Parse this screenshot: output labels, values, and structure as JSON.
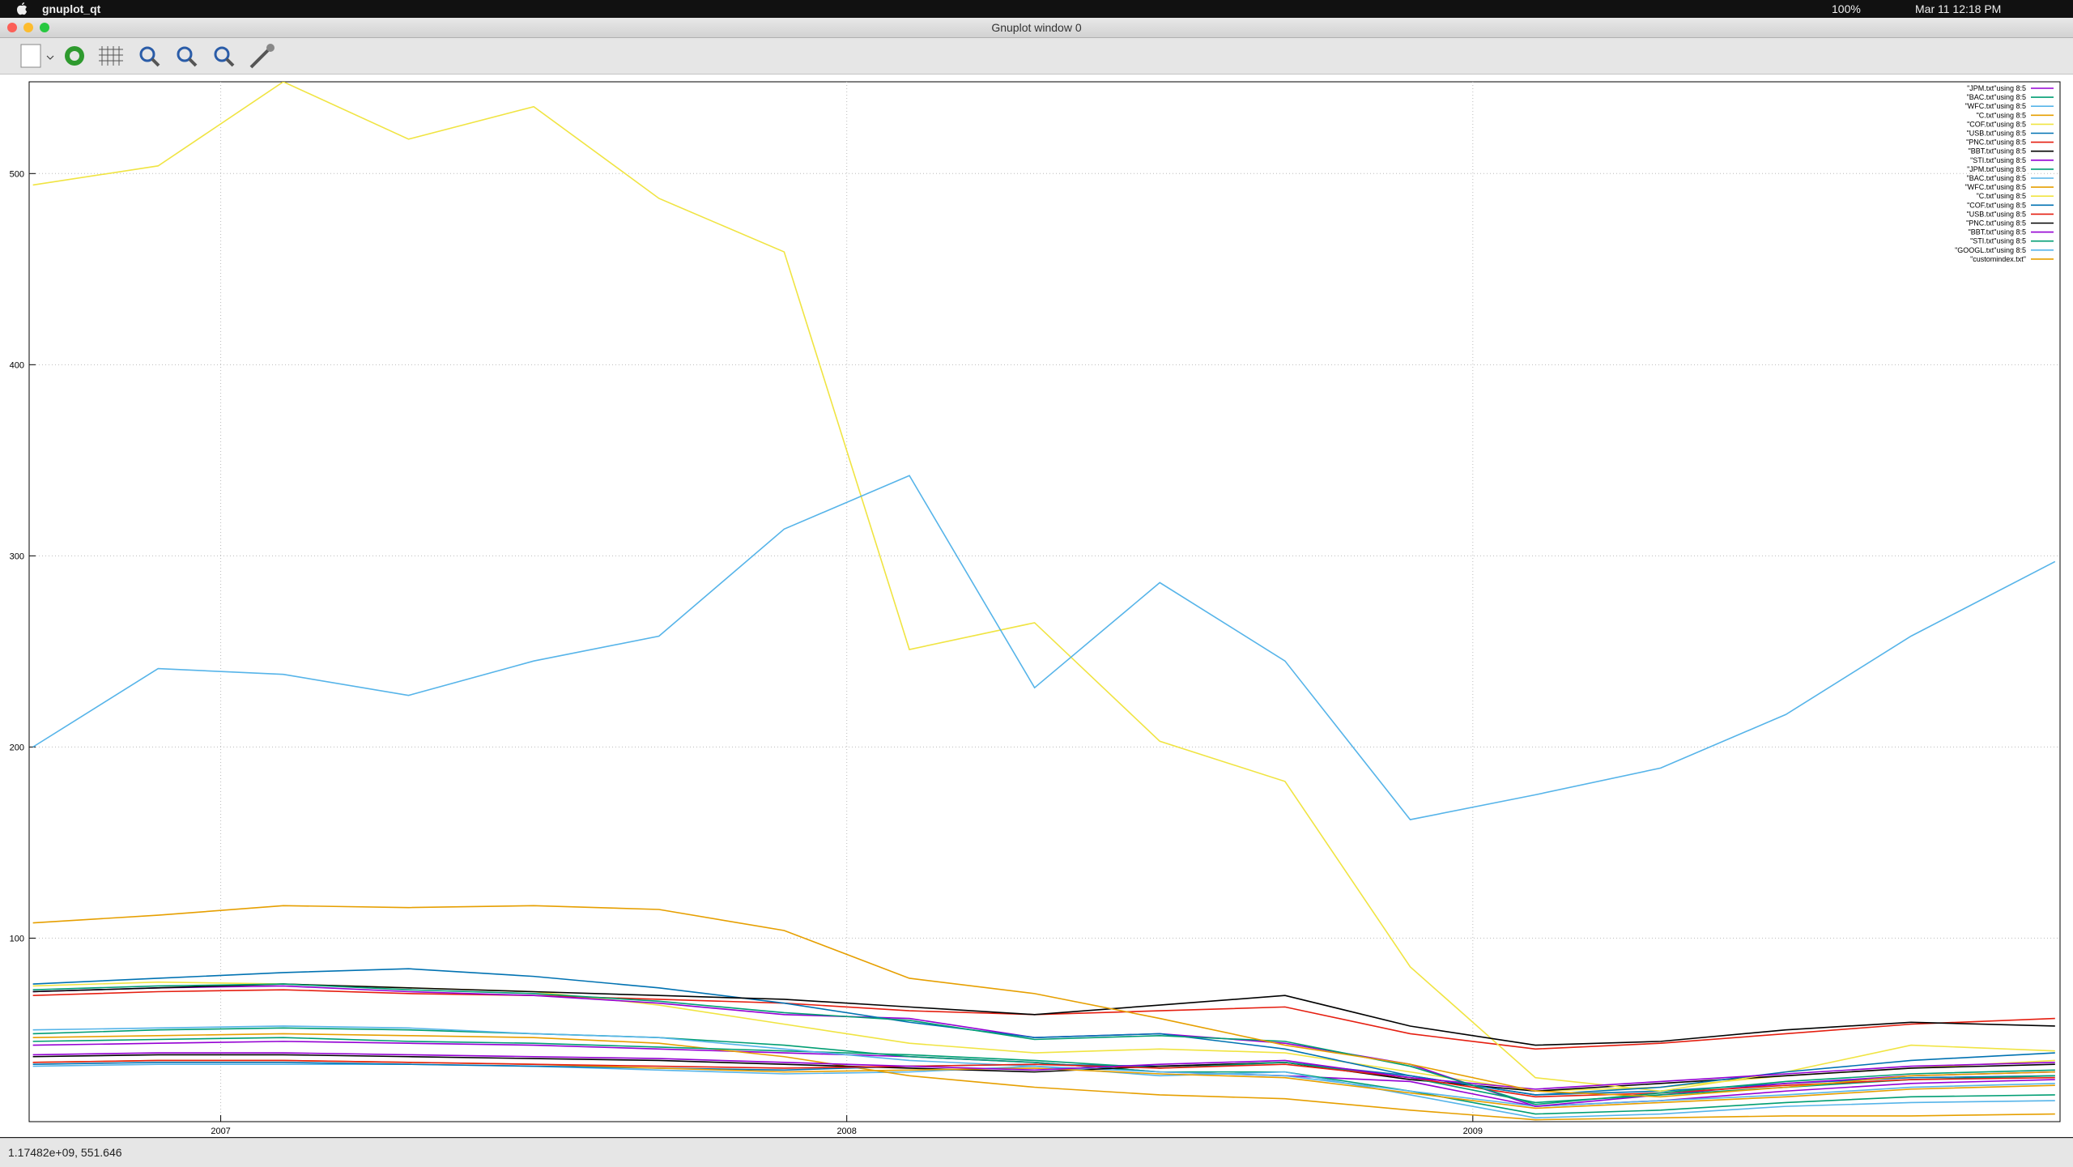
{
  "menu_bar": {
    "app_name": "gnuplot_qt",
    "battery": "100%",
    "clock": "Mar 11  12:18 PM"
  },
  "window": {
    "title": "Gnuplot window 0",
    "status": "1.17482e+09,  551.646"
  },
  "chart_data": {
    "type": "line",
    "x": [
      2006.7,
      2006.9,
      2007.1,
      2007.3,
      2007.5,
      2007.7,
      2007.9,
      2008.1,
      2008.3,
      2008.5,
      2008.7,
      2008.9,
      2009.1,
      2009.3,
      2009.5,
      2009.7,
      2009.93
    ],
    "xlim": [
      2006.694,
      2009.938
    ],
    "xticks": [
      2007,
      2008,
      2009
    ],
    "ylim": [
      4,
      548
    ],
    "yticks": [
      100,
      200,
      300,
      400,
      500
    ],
    "grid": true,
    "legend": "top-right",
    "series": [
      {
        "name": "\"JPM.txt\"using 8:5",
        "color": "#9400d3",
        "values": [
          44,
          45,
          46,
          45,
          44,
          42,
          40,
          38,
          35,
          30,
          28,
          25,
          12,
          15,
          20,
          24,
          26
        ]
      },
      {
        "name": "\"BAC.txt\"using 8:5",
        "color": "#009e73",
        "values": [
          50,
          52,
          53,
          52,
          50,
          48,
          44,
          38,
          35,
          30,
          30,
          20,
          8,
          10,
          14,
          17,
          18
        ]
      },
      {
        "name": "\"WFC.txt\"using 8:5",
        "color": "#56b4e9",
        "values": [
          33,
          34,
          34,
          34,
          33,
          31,
          29,
          30,
          33,
          30,
          28,
          20,
          12,
          15,
          18,
          22,
          24
        ]
      },
      {
        "name": "\"C.txt\"using 8:5",
        "color": "#e69f00",
        "values": [
          48,
          49,
          50,
          49,
          48,
          45,
          38,
          28,
          22,
          18,
          16,
          10,
          5,
          6,
          7,
          7,
          8
        ]
      },
      {
        "name": "\"COF.txt\"using 8:5",
        "color": "#f0e442",
        "values": [
          75,
          77,
          76,
          74,
          72,
          65,
          55,
          45,
          40,
          42,
          40,
          30,
          20,
          22,
          28,
          32,
          36
        ]
      },
      {
        "name": "\"USB.txt\"using 8:5",
        "color": "#0072b2",
        "values": [
          34,
          35,
          35,
          34,
          33,
          32,
          31,
          33,
          34,
          33,
          35,
          28,
          18,
          20,
          24,
          27,
          28
        ]
      },
      {
        "name": "\"PNC.txt\"using 8:5",
        "color": "#e51e10",
        "values": [
          70,
          72,
          73,
          71,
          70,
          68,
          66,
          62,
          60,
          62,
          64,
          50,
          42,
          45,
          50,
          55,
          58
        ]
      },
      {
        "name": "\"BBT.txt\"using 8:5",
        "color": "#000000",
        "values": [
          38,
          39,
          39,
          38,
          37,
          36,
          34,
          32,
          30,
          33,
          35,
          26,
          20,
          24,
          28,
          32,
          34
        ]
      },
      {
        "name": "\"STI.txt\"using 8:5",
        "color": "#9400d3",
        "values": [
          72,
          74,
          75,
          72,
          70,
          66,
          60,
          58,
          48,
          50,
          45,
          34,
          12,
          18,
          24,
          28,
          30
        ]
      },
      {
        "name": "\"JPM.txt\"using 8:5",
        "color": "#009e73",
        "values": [
          46,
          47,
          48,
          46,
          45,
          43,
          41,
          39,
          36,
          32,
          35,
          27,
          14,
          18,
          22,
          26,
          28
        ]
      },
      {
        "name": "\"BAC.txt\"using 8:5",
        "color": "#56b4e9",
        "values": [
          52,
          53,
          54,
          53,
          50,
          48,
          42,
          36,
          33,
          28,
          30,
          18,
          6,
          8,
          12,
          14,
          15
        ]
      },
      {
        "name": "\"WFC.txt\"using 8:5",
        "color": "#e69f00",
        "values": [
          35,
          36,
          36,
          35,
          34,
          32,
          30,
          31,
          32,
          29,
          27,
          19,
          11,
          14,
          17,
          21,
          23
        ]
      },
      {
        "name": "\"C.txt\"using 8:5",
        "color": "#f0e442",
        "values": [
          494,
          504,
          548,
          518,
          535,
          487,
          459,
          251,
          265,
          203,
          182,
          85,
          27,
          20,
          30,
          44,
          41
        ]
      },
      {
        "name": "\"COF.txt\"using 8:5",
        "color": "#0072b2",
        "values": [
          76,
          79,
          82,
          84,
          80,
          74,
          66,
          56,
          48,
          50,
          42,
          28,
          18,
          22,
          30,
          36,
          40
        ]
      },
      {
        "name": "\"USB.txt\"using 8:5",
        "color": "#e51e10",
        "values": [
          35,
          36,
          36,
          35,
          34,
          33,
          32,
          33,
          34,
          32,
          34,
          27,
          17,
          19,
          23,
          26,
          27
        ]
      },
      {
        "name": "\"PNC.txt\"using 8:5",
        "color": "#000000",
        "values": [
          72,
          74,
          76,
          74,
          72,
          70,
          68,
          64,
          60,
          65,
          70,
          54,
          44,
          46,
          52,
          56,
          54
        ]
      },
      {
        "name": "\"BBT.txt\"using 8:5",
        "color": "#9400d3",
        "values": [
          39,
          40,
          40,
          39,
          38,
          37,
          35,
          33,
          31,
          34,
          36,
          27,
          21,
          25,
          29,
          33,
          35
        ]
      },
      {
        "name": "\"STI.txt\"using 8:5",
        "color": "#009e73",
        "values": [
          73,
          75,
          76,
          73,
          71,
          67,
          61,
          57,
          47,
          49,
          46,
          33,
          13,
          19,
          25,
          29,
          31
        ]
      },
      {
        "name": "\"GOOGL.txt\"using 8:5",
        "color": "#56b4e9",
        "values": [
          200,
          241,
          238,
          227,
          245,
          258,
          314,
          342,
          231,
          286,
          245,
          162,
          175,
          189,
          217,
          258,
          297
        ]
      },
      {
        "name": "\"customindex.txt\"",
        "color": "#e69f00",
        "values": [
          108,
          112,
          117,
          116,
          117,
          115,
          104,
          79,
          71,
          58,
          44,
          34,
          20,
          17,
          22,
          28,
          30
        ]
      }
    ]
  }
}
